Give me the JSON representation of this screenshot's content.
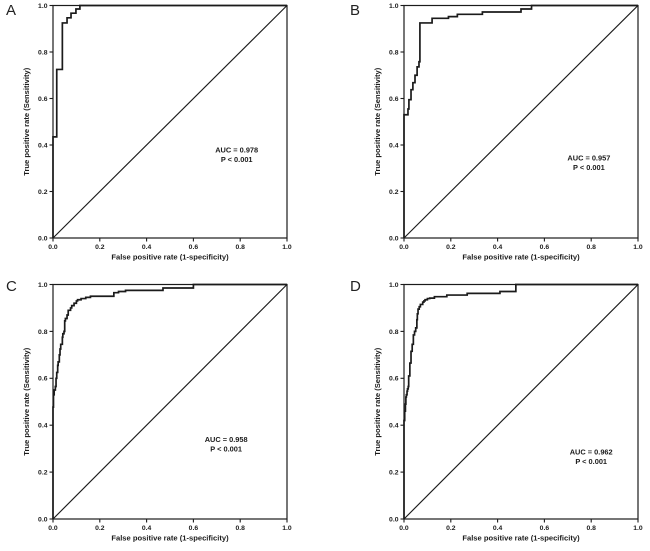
{
  "figure": {
    "background": "#ffffff",
    "line_color": "#1b1b1b",
    "text_color": "#1b1b1b"
  },
  "chart_data": [
    {
      "type": "line",
      "panel": "A",
      "auc_label": "AUC = 0.978",
      "p_label": "P < 0.001",
      "xlabel": "False positive rate (1-specificity)",
      "ylabel": "True positive rate (Sensitivity)",
      "xlim": [
        0,
        1
      ],
      "ylim": [
        0,
        1
      ],
      "xtick_labels": [
        "0.0",
        "0.2",
        "0.4",
        "0.6",
        "0.8",
        "1.0"
      ],
      "ytick_labels": [
        "0.0",
        "0.2",
        "0.4",
        "0.6",
        "0.8",
        "1.0"
      ],
      "grid": false,
      "diagonal_reference": true,
      "annotation_pos": [
        0.785,
        0.378
      ],
      "roc_points": [
        [
          0,
          0
        ],
        [
          0.005,
          0.435
        ],
        [
          0.016,
          0.435
        ],
        [
          0.016,
          0.725
        ],
        [
          0.04,
          0.725
        ],
        [
          0.04,
          0.925
        ],
        [
          0.06,
          0.925
        ],
        [
          0.06,
          0.947
        ],
        [
          0.077,
          0.947
        ],
        [
          0.077,
          0.967
        ],
        [
          0.098,
          0.967
        ],
        [
          0.098,
          0.985
        ],
        [
          0.115,
          0.985
        ],
        [
          0.115,
          1.0
        ],
        [
          1,
          1
        ]
      ]
    },
    {
      "type": "line",
      "panel": "B",
      "auc_label": "AUC = 0.957",
      "p_label": "P < 0.001",
      "xlabel": "False positive rate (1-specificity)",
      "ylabel": "True positive rate (Sensitivity)",
      "xlim": [
        0,
        1
      ],
      "ylim": [
        0,
        1
      ],
      "xtick_labels": [
        "0.0",
        "0.2",
        "0.4",
        "0.6",
        "0.8",
        "1.0"
      ],
      "ytick_labels": [
        "0.0",
        "0.2",
        "0.4",
        "0.6",
        "0.8",
        "1.0"
      ],
      "grid": false,
      "diagonal_reference": true,
      "annotation_pos": [
        0.79,
        0.345
      ],
      "roc_points": [
        [
          0,
          0
        ],
        [
          0.004,
          0.53
        ],
        [
          0.017,
          0.53
        ],
        [
          0.017,
          0.555
        ],
        [
          0.021,
          0.555
        ],
        [
          0.021,
          0.595
        ],
        [
          0.03,
          0.595
        ],
        [
          0.03,
          0.638
        ],
        [
          0.038,
          0.638
        ],
        [
          0.038,
          0.668
        ],
        [
          0.047,
          0.668
        ],
        [
          0.047,
          0.7
        ],
        [
          0.056,
          0.7
        ],
        [
          0.056,
          0.736
        ],
        [
          0.064,
          0.736
        ],
        [
          0.064,
          0.758
        ],
        [
          0.068,
          0.758
        ],
        [
          0.068,
          0.925
        ],
        [
          0.12,
          0.925
        ],
        [
          0.12,
          0.945
        ],
        [
          0.19,
          0.945
        ],
        [
          0.19,
          0.952
        ],
        [
          0.228,
          0.952
        ],
        [
          0.228,
          0.962
        ],
        [
          0.335,
          0.962
        ],
        [
          0.335,
          0.972
        ],
        [
          0.5,
          0.972
        ],
        [
          0.5,
          0.985
        ],
        [
          0.545,
          0.985
        ],
        [
          0.545,
          1.0
        ],
        [
          1,
          1
        ]
      ]
    },
    {
      "type": "line",
      "panel": "C",
      "auc_label": "AUC = 0.958",
      "p_label": "P < 0.001",
      "xlabel": "False positive rate (1-specificity)",
      "ylabel": "True positive rate (Sensitivity)",
      "xlim": [
        0,
        1
      ],
      "ylim": [
        0,
        1
      ],
      "xtick_labels": [
        "0.0",
        "0.2",
        "0.4",
        "0.6",
        "0.8",
        "1.0"
      ],
      "ytick_labels": [
        "0.0",
        "0.2",
        "0.4",
        "0.6",
        "0.8",
        "1.0"
      ],
      "grid": false,
      "diagonal_reference": true,
      "annotation_pos": [
        0.74,
        0.34
      ],
      "roc_points": [
        [
          0,
          0
        ],
        [
          0.002,
          0.477
        ],
        [
          0.005,
          0.53
        ],
        [
          0.01,
          0.55
        ],
        [
          0.013,
          0.565
        ],
        [
          0.016,
          0.6
        ],
        [
          0.02,
          0.625
        ],
        [
          0.022,
          0.655
        ],
        [
          0.027,
          0.67
        ],
        [
          0.03,
          0.7
        ],
        [
          0.033,
          0.725
        ],
        [
          0.04,
          0.745
        ],
        [
          0.042,
          0.775
        ],
        [
          0.047,
          0.79
        ],
        [
          0.05,
          0.8
        ],
        [
          0.053,
          0.845
        ],
        [
          0.06,
          0.855
        ],
        [
          0.065,
          0.87
        ],
        [
          0.075,
          0.89
        ],
        [
          0.08,
          0.9
        ],
        [
          0.09,
          0.91
        ],
        [
          0.1,
          0.92
        ],
        [
          0.105,
          0.93
        ],
        [
          0.12,
          0.935
        ],
        [
          0.14,
          0.94
        ],
        [
          0.16,
          0.945
        ],
        [
          0.18,
          0.95
        ],
        [
          0.26,
          0.95
        ],
        [
          0.26,
          0.958
        ],
        [
          0.28,
          0.965
        ],
        [
          0.31,
          0.97
        ],
        [
          0.33,
          0.975
        ],
        [
          0.47,
          0.975
        ],
        [
          0.47,
          0.985
        ],
        [
          0.6,
          0.985
        ],
        [
          0.6,
          1.0
        ],
        [
          1,
          1
        ]
      ]
    },
    {
      "type": "line",
      "panel": "D",
      "auc_label": "AUC = 0.962",
      "p_label": "P < 0.001",
      "xlabel": "False positive rate (1-specificity)",
      "ylabel": "True positive rate (Sensitivity)",
      "xlim": [
        0,
        1
      ],
      "ylim": [
        0,
        1
      ],
      "xtick_labels": [
        "0.0",
        "0.2",
        "0.4",
        "0.6",
        "0.8",
        "1.0"
      ],
      "ytick_labels": [
        "0.0",
        "0.2",
        "0.4",
        "0.6",
        "0.8",
        "1.0"
      ],
      "grid": false,
      "diagonal_reference": true,
      "annotation_pos": [
        0.8,
        0.285
      ],
      "roc_points": [
        [
          0,
          0
        ],
        [
          0.003,
          0.42
        ],
        [
          0.006,
          0.46
        ],
        [
          0.008,
          0.49
        ],
        [
          0.01,
          0.52
        ],
        [
          0.013,
          0.53
        ],
        [
          0.015,
          0.545
        ],
        [
          0.018,
          0.555
        ],
        [
          0.02,
          0.565
        ],
        [
          0.02,
          0.6
        ],
        [
          0.025,
          0.61
        ],
        [
          0.025,
          0.655
        ],
        [
          0.03,
          0.665
        ],
        [
          0.03,
          0.7
        ],
        [
          0.035,
          0.715
        ],
        [
          0.035,
          0.735
        ],
        [
          0.04,
          0.745
        ],
        [
          0.04,
          0.775
        ],
        [
          0.045,
          0.785
        ],
        [
          0.05,
          0.8
        ],
        [
          0.055,
          0.815
        ],
        [
          0.057,
          0.85
        ],
        [
          0.06,
          0.875
        ],
        [
          0.065,
          0.895
        ],
        [
          0.07,
          0.905
        ],
        [
          0.08,
          0.915
        ],
        [
          0.085,
          0.925
        ],
        [
          0.09,
          0.93
        ],
        [
          0.1,
          0.935
        ],
        [
          0.11,
          0.94
        ],
        [
          0.13,
          0.942
        ],
        [
          0.15,
          0.948
        ],
        [
          0.183,
          0.948
        ],
        [
          0.183,
          0.955
        ],
        [
          0.27,
          0.955
        ],
        [
          0.27,
          0.962
        ],
        [
          0.41,
          0.962
        ],
        [
          0.41,
          0.97
        ],
        [
          0.478,
          0.97
        ],
        [
          0.478,
          1.0
        ],
        [
          1,
          1
        ]
      ]
    }
  ]
}
